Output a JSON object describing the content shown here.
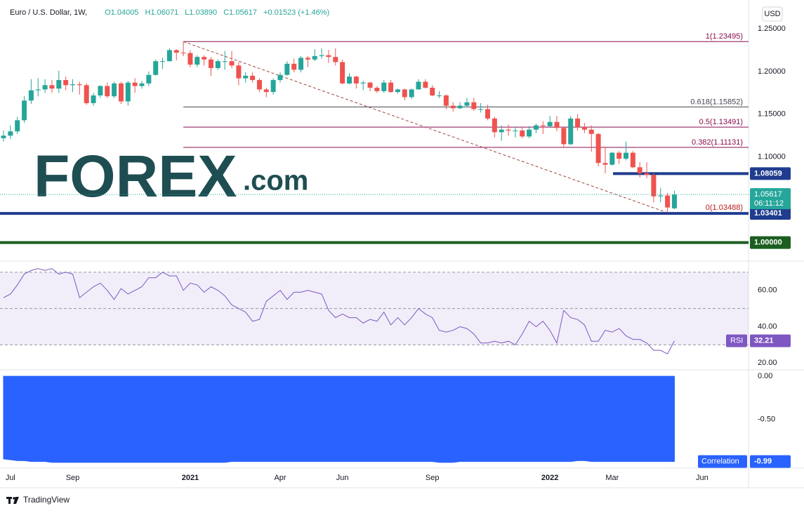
{
  "header": {
    "symbol": "Euro / U.S. Dollar, 1W,",
    "ohlc": [
      "O1.04005",
      "H1.06071",
      "L1.03890",
      "C1.05617"
    ],
    "change": "+0.01523 (+1.46%)"
  },
  "logo": {
    "brand": "FOREX",
    "suffix": ".com"
  },
  "footer": "TradingView",
  "chart_data": [
    {
      "type": "candlestick",
      "currency": "USD",
      "up_color": "#26a69a",
      "down_color": "#ef5350",
      "categories": [
        null,
        "Jul",
        null,
        null,
        null,
        null,
        null,
        null,
        null,
        null,
        "Sep",
        null,
        null,
        null,
        null,
        null,
        null,
        null,
        null,
        null,
        null,
        null,
        null,
        null,
        null,
        null,
        null,
        "2021",
        null,
        null,
        null,
        null,
        null,
        null,
        null,
        null,
        null,
        null,
        null,
        null,
        "Apr",
        null,
        null,
        null,
        null,
        null,
        null,
        null,
        null,
        "Jun",
        null,
        null,
        null,
        null,
        null,
        null,
        null,
        null,
        null,
        null,
        null,
        null,
        "Sep",
        null,
        null,
        null,
        null,
        null,
        null,
        null,
        null,
        null,
        null,
        null,
        null,
        null,
        null,
        null,
        null,
        "2022",
        null,
        null,
        null,
        null,
        null,
        null,
        null,
        null,
        "Mar",
        null,
        null,
        null,
        null,
        null,
        null,
        null,
        null,
        null,
        null,
        null,
        null,
        "Jun"
      ],
      "candles": [
        [
          1.122,
          1.131,
          1.118,
          1.125
        ],
        [
          1.125,
          1.137,
          1.121,
          1.13
        ],
        [
          1.13,
          1.147,
          1.127,
          1.143
        ],
        [
          1.143,
          1.171,
          1.14,
          1.166
        ],
        [
          1.166,
          1.191,
          1.162,
          1.178
        ],
        [
          1.178,
          1.192,
          1.171,
          1.179
        ],
        [
          1.179,
          1.191,
          1.175,
          1.184
        ],
        [
          1.184,
          1.19,
          1.175,
          1.18
        ],
        [
          1.18,
          1.201,
          1.175,
          1.19
        ],
        [
          1.19,
          1.194,
          1.178,
          1.184
        ],
        [
          1.184,
          1.191,
          1.176,
          1.185
        ],
        [
          1.185,
          1.188,
          1.173,
          1.184
        ],
        [
          1.184,
          1.186,
          1.161,
          1.163
        ],
        [
          1.163,
          1.175,
          1.16,
          1.172
        ],
        [
          1.172,
          1.184,
          1.169,
          1.183
        ],
        [
          1.183,
          1.187,
          1.169,
          1.171
        ],
        [
          1.171,
          1.188,
          1.169,
          1.186
        ],
        [
          1.186,
          1.188,
          1.162,
          1.165
        ],
        [
          1.165,
          1.189,
          1.16,
          1.187
        ],
        [
          1.187,
          1.192,
          1.175,
          1.183
        ],
        [
          1.183,
          1.189,
          1.18,
          1.186
        ],
        [
          1.186,
          1.2,
          1.183,
          1.196
        ],
        [
          1.196,
          1.214,
          1.195,
          1.212
        ],
        [
          1.212,
          1.216,
          1.203,
          1.212
        ],
        [
          1.212,
          1.227,
          1.212,
          1.225
        ],
        [
          1.225,
          1.226,
          1.213,
          1.222
        ],
        [
          1.222,
          1.23495,
          1.218,
          1.2215
        ],
        [
          1.2215,
          1.225,
          1.205,
          1.208
        ],
        [
          1.208,
          1.219,
          1.205,
          1.217
        ],
        [
          1.217,
          1.219,
          1.207,
          1.214
        ],
        [
          1.214,
          1.217,
          1.195,
          1.204
        ],
        [
          1.204,
          1.214,
          1.202,
          1.212
        ],
        [
          1.212,
          1.224,
          1.202,
          1.212
        ],
        [
          1.212,
          1.224,
          1.204,
          1.207
        ],
        [
          1.207,
          1.211,
          1.184,
          1.192
        ],
        [
          1.192,
          1.199,
          1.187,
          1.195
        ],
        [
          1.195,
          1.199,
          1.187,
          1.19
        ],
        [
          1.19,
          1.192,
          1.176,
          1.179
        ],
        [
          1.179,
          1.181,
          1.17,
          1.176
        ],
        [
          1.176,
          1.192,
          1.173,
          1.19
        ],
        [
          1.19,
          1.199,
          1.187,
          1.196
        ],
        [
          1.196,
          1.212,
          1.195,
          1.209
        ],
        [
          1.209,
          1.215,
          1.199,
          1.202
        ],
        [
          1.202,
          1.218,
          1.199,
          1.216
        ],
        [
          1.216,
          1.218,
          1.205,
          1.214
        ],
        [
          1.214,
          1.226,
          1.212,
          1.218
        ],
        [
          1.218,
          1.227,
          1.215,
          1.219
        ],
        [
          1.219,
          1.225,
          1.21,
          1.217
        ],
        [
          1.217,
          1.227,
          1.207,
          1.211
        ],
        [
          1.211,
          1.214,
          1.185,
          1.186
        ],
        [
          1.186,
          1.198,
          1.185,
          1.194
        ],
        [
          1.194,
          1.195,
          1.18,
          1.186
        ],
        [
          1.186,
          1.189,
          1.178,
          1.187
        ],
        [
          1.187,
          1.188,
          1.177,
          1.181
        ],
        [
          1.181,
          1.183,
          1.175,
          1.177
        ],
        [
          1.177,
          1.19,
          1.175,
          1.187
        ],
        [
          1.187,
          1.19,
          1.175,
          1.176
        ],
        [
          1.176,
          1.18,
          1.174,
          1.179
        ],
        [
          1.179,
          1.18,
          1.166,
          1.17
        ],
        [
          1.17,
          1.18,
          1.168,
          1.179
        ],
        [
          1.179,
          1.191,
          1.179,
          1.188
        ],
        [
          1.188,
          1.191,
          1.18,
          1.181
        ],
        [
          1.181,
          1.184,
          1.171,
          1.172
        ],
        [
          1.172,
          1.177,
          1.169,
          1.172
        ],
        [
          1.172,
          1.173,
          1.156,
          1.16
        ],
        [
          1.16,
          1.164,
          1.153,
          1.157
        ],
        [
          1.157,
          1.164,
          1.156,
          1.16
        ],
        [
          1.16,
          1.169,
          1.158,
          1.164
        ],
        [
          1.164,
          1.169,
          1.154,
          1.156
        ],
        [
          1.156,
          1.163,
          1.152,
          1.156
        ],
        [
          1.156,
          1.161,
          1.143,
          1.145
        ],
        [
          1.145,
          1.147,
          1.123,
          1.129
        ],
        [
          1.129,
          1.137,
          1.119,
          1.132
        ],
        [
          1.132,
          1.138,
          1.125,
          1.131
        ],
        [
          1.131,
          1.135,
          1.123,
          1.131
        ],
        [
          1.131,
          1.135,
          1.122,
          1.124
        ],
        [
          1.124,
          1.136,
          1.122,
          1.132
        ],
        [
          1.132,
          1.139,
          1.128,
          1.137
        ],
        [
          1.137,
          1.142,
          1.127,
          1.136
        ],
        [
          1.136,
          1.148,
          1.135,
          1.141
        ],
        [
          1.141,
          1.148,
          1.13,
          1.134
        ],
        [
          1.134,
          1.135,
          1.112,
          1.115
        ],
        [
          1.115,
          1.148,
          1.114,
          1.145
        ],
        [
          1.145,
          1.15,
          1.131,
          1.135
        ],
        [
          1.135,
          1.14,
          1.128,
          1.132
        ],
        [
          1.132,
          1.137,
          1.106,
          1.127
        ],
        [
          1.127,
          1.128,
          1.089,
          1.093
        ],
        [
          1.093,
          1.112,
          1.081,
          1.091
        ],
        [
          1.091,
          1.106,
          1.09,
          1.105
        ],
        [
          1.105,
          1.107,
          1.092,
          1.098
        ],
        [
          1.098,
          1.118,
          1.096,
          1.105
        ],
        [
          1.105,
          1.107,
          1.087,
          1.088
        ],
        [
          1.088,
          1.094,
          1.076,
          1.081
        ],
        [
          1.081,
          1.094,
          1.075,
          1.079
        ],
        [
          1.079,
          1.081,
          1.047,
          1.054
        ],
        [
          1.054,
          1.064,
          1.047,
          1.055
        ],
        [
          1.055,
          1.058,
          1.03488,
          1.041
        ],
        [
          1.04005,
          1.06071,
          1.0389,
          1.05617
        ],
        null,
        null,
        null,
        null
      ],
      "countdown": "06:11:12",
      "ylim": [
        0.98,
        1.277
      ],
      "yticks": [
        {
          "value": 1.25,
          "label": "1.25000"
        },
        {
          "value": 1.2,
          "label": "1.20000"
        },
        {
          "value": 1.15,
          "label": "1.15000"
        },
        {
          "value": 1.1,
          "label": "1.10000"
        }
      ],
      "grid": false,
      "fib_levels": [
        {
          "value": 1.23495,
          "label": "1(1.23495)",
          "color": "#880e4f"
        },
        {
          "value": 1.15852,
          "label": "0.618(1.15852)",
          "color": "#434651"
        },
        {
          "value": 1.13491,
          "label": "0.5(1.13491)",
          "color": "#880e4f"
        },
        {
          "value": 1.11131,
          "label": "0.382(1.11131)",
          "color": "#880e4f"
        },
        {
          "value": 1.03488,
          "label": "0(1.03488)",
          "color": "#b71c1c"
        }
      ],
      "trend_color": "#a0453f",
      "hlines": [
        {
          "value": 1.08059,
          "color": "#1f3c8f",
          "partial": true
        },
        {
          "value": 1.03401,
          "color": "#1f3c8f"
        },
        {
          "value": 1,
          "label": "1.00000",
          "color": "#1b5e20"
        }
      ]
    },
    {
      "type": "line",
      "name": "RSI",
      "color": "#7e57c2",
      "values": [
        56,
        58,
        63,
        69,
        71,
        72,
        71,
        72,
        69,
        70,
        69,
        56,
        59,
        62,
        64,
        60,
        55,
        61,
        58,
        60,
        62,
        67,
        67,
        70,
        68,
        68,
        60,
        64,
        63,
        59,
        62,
        60,
        57,
        52,
        50,
        48,
        43,
        44,
        54,
        57,
        60,
        55,
        59,
        59,
        60,
        59,
        58,
        49,
        45,
        47,
        45,
        45,
        42,
        44,
        43,
        48,
        41,
        45,
        41,
        45,
        50,
        47,
        45,
        38,
        37,
        38,
        40,
        39,
        36,
        31,
        31,
        32,
        31,
        32,
        30,
        36,
        43,
        40,
        43,
        38,
        31,
        49,
        45,
        44,
        41,
        32,
        32,
        38,
        37,
        39,
        35,
        33,
        33,
        31,
        27,
        27,
        25,
        32.21,
        null,
        null,
        null,
        null
      ],
      "levels": [
        30,
        50,
        70
      ],
      "ylim": [
        17,
        75
      ],
      "yticks": [
        {
          "value": 60,
          "label": "60.00"
        },
        {
          "value": 40,
          "label": "40.00"
        },
        {
          "value": 20,
          "label": "20.00"
        }
      ]
    },
    {
      "type": "area",
      "name": "Correlation",
      "color": "#2962ff",
      "values": [
        -0.96,
        -0.97,
        -0.98,
        -0.98,
        -0.99,
        -0.99,
        -0.99,
        -1.0,
        -1.0,
        -1.0,
        -1.0,
        -1.0,
        -1.0,
        -1.0,
        -1.0,
        -1.0,
        -1.0,
        -1.0,
        -1.0,
        -1.0,
        -1.0,
        -1.0,
        -1.0,
        -1.0,
        -1.0,
        -1.0,
        -1.0,
        -1.0,
        -1.0,
        -1.0,
        -1.0,
        -1.0,
        -1.0,
        -0.99,
        -0.99,
        -0.99,
        -0.99,
        -0.99,
        -0.99,
        -0.99,
        -0.99,
        -0.99,
        -0.99,
        -0.99,
        -0.99,
        -0.99,
        -0.99,
        -0.99,
        -0.99,
        -0.99,
        -0.99,
        -0.99,
        -0.99,
        -0.99,
        -0.99,
        -0.99,
        -0.99,
        -0.99,
        -0.99,
        -0.99,
        -0.99,
        -0.99,
        -0.99,
        -1.0,
        -1.0,
        -1.0,
        -0.99,
        -0.99,
        -0.99,
        -0.99,
        -0.99,
        -0.99,
        -0.99,
        -0.99,
        -0.99,
        -0.99,
        -0.99,
        -0.99,
        -0.99,
        -0.99,
        -0.99,
        -0.99,
        -0.99,
        -0.98,
        -0.98,
        -0.99,
        -0.99,
        -0.99,
        -0.99,
        -0.99,
        -0.99,
        -0.99,
        -0.99,
        -0.99,
        -0.99,
        -0.99,
        -0.99,
        -0.99,
        null,
        null,
        null,
        null
      ],
      "ylim": [
        -1.05,
        0.05
      ],
      "yticks": [
        {
          "value": 0,
          "label": "0.00"
        },
        {
          "value": -0.5,
          "label": "-0.50"
        }
      ]
    }
  ]
}
